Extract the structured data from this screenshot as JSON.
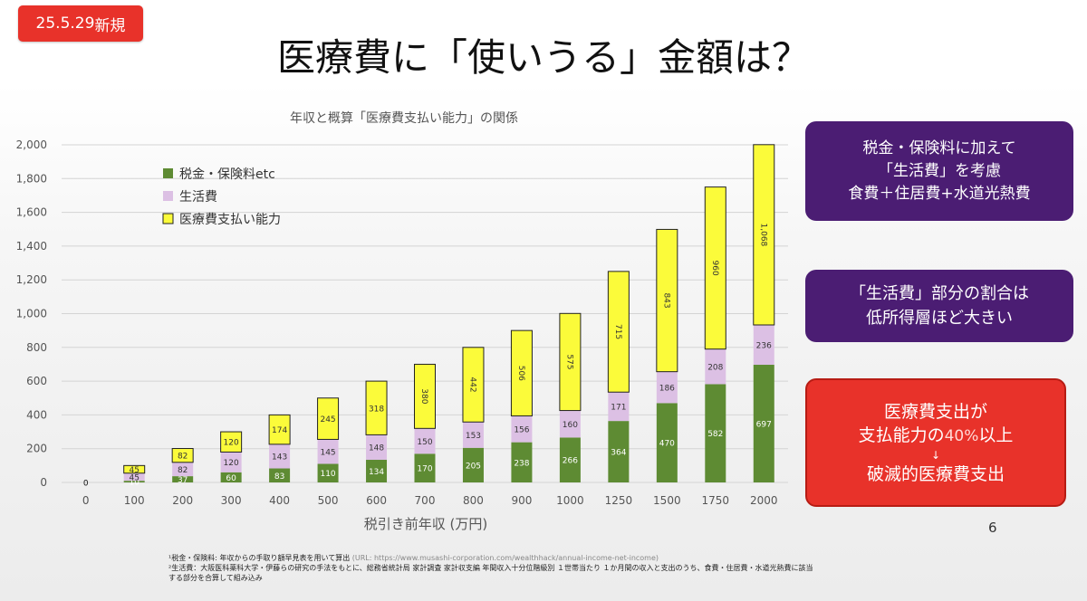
{
  "badge": {
    "date": "25.5.29",
    "label": "新規"
  },
  "title": "医療費に「使いうる」金額は？",
  "chart_data": {
    "type": "bar",
    "stacked": true,
    "title": "年収と概算「医療費支払い能力」の関係",
    "xlabel": "税引き前年収 (万円)",
    "ylabel": "",
    "ylim": [
      0,
      2000
    ],
    "ytick_labels": [
      "0",
      "200",
      "400",
      "600",
      "800",
      "1,000",
      "1,200",
      "1,400",
      "1,600",
      "1,800",
      "2,000"
    ],
    "grid": true,
    "legend_position": "top-left",
    "categories": [
      "0",
      "100",
      "200",
      "300",
      "400",
      "500",
      "600",
      "700",
      "800",
      "900",
      "1000",
      "1250",
      "1500",
      "1750",
      "2000"
    ],
    "series": [
      {
        "name": "税金・保険料etc",
        "color": "#5e8b33",
        "values": [
          0,
          10,
          37,
          60,
          83,
          110,
          134,
          170,
          205,
          238,
          266,
          364,
          470,
          582,
          697
        ],
        "labels": [
          "0",
          "10",
          "37",
          "60",
          "83",
          "110",
          "134",
          "170",
          "205",
          "238",
          "266",
          "364",
          "470",
          "582",
          "697"
        ]
      },
      {
        "name": "生活費",
        "color": "#dcc0e4",
        "values": [
          0,
          45,
          82,
          120,
          143,
          145,
          148,
          150,
          153,
          156,
          160,
          171,
          186,
          208,
          236
        ],
        "labels": [
          "",
          "45",
          "82",
          "120",
          "143",
          "145",
          "148",
          "150",
          "153",
          "156",
          "160",
          "171",
          "186",
          "208",
          "236"
        ]
      },
      {
        "name": "医療費支払い能力",
        "color": "#fbfb3a",
        "values": [
          0,
          45,
          82,
          120,
          174,
          245,
          318,
          380,
          442,
          506,
          575,
          715,
          843,
          960,
          1068
        ],
        "labels": [
          "0",
          "45",
          "82",
          "120",
          "174",
          "245",
          "318",
          "380",
          "442",
          "506",
          "575",
          "715",
          "843",
          "960",
          "1,068"
        ]
      }
    ]
  },
  "callouts": {
    "c1": [
      "税金・保険料に加えて",
      "「生活費」を考慮",
      "食費＋住居費+水道光熱費"
    ],
    "c2": [
      "「生活費」部分の割合は",
      "低所得層ほど大きい"
    ],
    "c3": {
      "line1": "医療費支出が",
      "line2_pre": "支払能力の",
      "line2_pct": "40%",
      "line2_post": "以上",
      "arrow": "↓",
      "line3": "破滅的医療費支出"
    }
  },
  "page_number": "6",
  "notes": {
    "n1_text": "¹税金・保険料: 年収からの手取り額早見表を用いて算出",
    "n1_url": "(URL: https://www.musashi-corporation.com/wealthhack/annual-income-net-income)",
    "n2_line1": "²生活費：大阪医科薬科大学・伊藤らの研究の手法をもとに、総務省統計局 家計調査 家計収支編 年間収入十分位階級別 １世帯当たり １か月間の収入と支出のうち、食費・住居費・水道光熱費に該当",
    "n2_line2": "する部分を合算して組み込み"
  }
}
